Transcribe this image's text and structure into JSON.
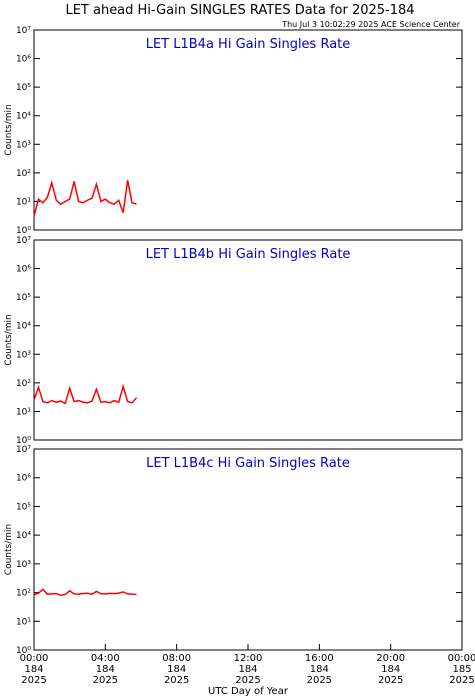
{
  "title": "LET ahead Hi-Gain SINGLES RATES Data for 2025-184",
  "timestamp": "Thu Jul  3 10:02:29 2025 ACE Science Center",
  "chart_data": [
    {
      "type": "line",
      "title": "LET L1B4a Hi Gain Singles Rate",
      "ylabel": "Counts/min",
      "log_y": true,
      "color": "#ff0000",
      "x": [
        0,
        0.25,
        0.5,
        0.75,
        1,
        1.25,
        1.5,
        1.75,
        2,
        2.25,
        2.5,
        2.75,
        3,
        3.25,
        3.5,
        3.75,
        4,
        4.25,
        4.5,
        4.75,
        5,
        5.25,
        5.5,
        5.75
      ],
      "values": [
        3,
        12,
        9,
        14,
        45,
        11,
        8,
        10,
        12,
        50,
        10,
        9,
        11,
        13,
        40,
        10,
        12,
        9,
        8,
        11,
        4,
        55,
        9,
        8
      ],
      "xlim": [
        0,
        24
      ],
      "ylim": [
        1,
        10000000
      ],
      "yticks": [
        {
          "value": 1,
          "label": "10⁰"
        },
        {
          "value": 10,
          "label": "10¹"
        },
        {
          "value": 100,
          "label": "10²"
        },
        {
          "value": 1000,
          "label": "10³"
        },
        {
          "value": 10000,
          "label": "10⁴"
        },
        {
          "value": 100000,
          "label": "10⁵"
        },
        {
          "value": 1000000,
          "label": "10⁶"
        },
        {
          "value": 10000000,
          "label": "10⁷"
        }
      ]
    },
    {
      "type": "line",
      "title": "LET L1B4b Hi Gain Singles Rate",
      "ylabel": "Counts/min",
      "log_y": true,
      "color": "#ff0000",
      "x": [
        0,
        0.25,
        0.5,
        0.75,
        1,
        1.25,
        1.5,
        1.75,
        2,
        2.25,
        2.5,
        2.75,
        3,
        3.25,
        3.5,
        3.75,
        4,
        4.25,
        4.5,
        4.75,
        5,
        5.25,
        5.5,
        5.75
      ],
      "values": [
        25,
        70,
        22,
        20,
        24,
        21,
        23,
        19,
        65,
        22,
        24,
        21,
        20,
        23,
        60,
        21,
        22,
        20,
        24,
        21,
        75,
        22,
        20,
        30
      ],
      "xlim": [
        0,
        24
      ],
      "ylim": [
        1,
        10000000
      ],
      "yticks": [
        {
          "value": 1,
          "label": "10⁰"
        },
        {
          "value": 10,
          "label": "10¹"
        },
        {
          "value": 100,
          "label": "10²"
        },
        {
          "value": 1000,
          "label": "10³"
        },
        {
          "value": 10000,
          "label": "10⁴"
        },
        {
          "value": 100000,
          "label": "10⁵"
        },
        {
          "value": 1000000,
          "label": "10⁶"
        },
        {
          "value": 10000000,
          "label": "10⁷"
        }
      ]
    },
    {
      "type": "line",
      "title": "LET L1B4c Hi Gain Singles Rate",
      "ylabel": "Counts/min",
      "xlabel": "UTC Day of Year",
      "log_y": true,
      "color": "#ff0000",
      "x": [
        0,
        0.25,
        0.5,
        0.75,
        1,
        1.25,
        1.5,
        1.75,
        2,
        2.25,
        2.5,
        2.75,
        3,
        3.25,
        3.5,
        3.75,
        4,
        4.25,
        4.5,
        4.75,
        5,
        5.25,
        5.5,
        5.75
      ],
      "values": [
        85,
        95,
        130,
        88,
        90,
        92,
        80,
        86,
        115,
        90,
        88,
        93,
        95,
        87,
        110,
        91,
        89,
        94,
        92,
        96,
        105,
        90,
        88,
        85
      ],
      "xlim": [
        0,
        24
      ],
      "ylim": [
        1,
        10000000
      ],
      "yticks": [
        {
          "value": 1,
          "label": "10⁰"
        },
        {
          "value": 10,
          "label": "10¹"
        },
        {
          "value": 100,
          "label": "10²"
        },
        {
          "value": 1000,
          "label": "10³"
        },
        {
          "value": 10000,
          "label": "10⁴"
        },
        {
          "value": 100000,
          "label": "10⁵"
        },
        {
          "value": 1000000,
          "label": "10⁶"
        },
        {
          "value": 10000000,
          "label": "10⁷"
        }
      ],
      "xticks": [
        {
          "value": 0,
          "label": "00:00\n184\n2025"
        },
        {
          "value": 4,
          "label": "04:00\n184\n2025"
        },
        {
          "value": 8,
          "label": "08:00\n184\n2025"
        },
        {
          "value": 12,
          "label": "12:00\n184\n2025"
        },
        {
          "value": 16,
          "label": "16:00\n184\n2025"
        },
        {
          "value": 20,
          "label": "20:00\n184\n2025"
        },
        {
          "value": 24,
          "label": "00:00\n185\n2025"
        }
      ]
    }
  ]
}
